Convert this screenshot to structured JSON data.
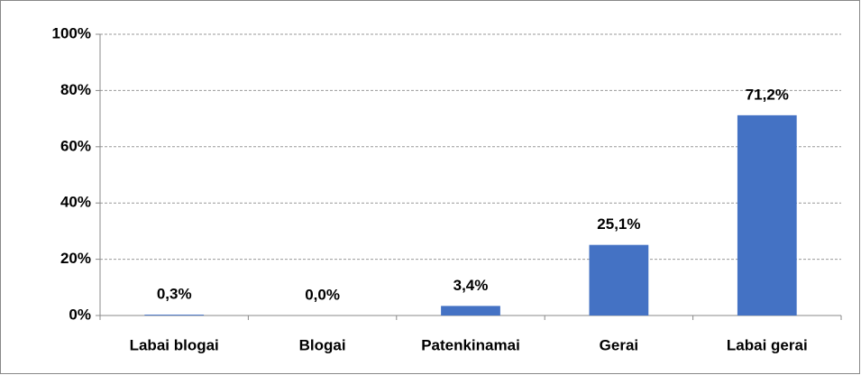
{
  "chart_data": {
    "type": "bar",
    "categories": [
      "Labai blogai",
      "Blogai",
      "Patenkinamai",
      "Gerai",
      "Labai gerai"
    ],
    "values": [
      0.3,
      0.0,
      3.4,
      25.1,
      71.2
    ],
    "value_labels": [
      "0,3%",
      "0,0%",
      "3,4%",
      "25,1%",
      "71,2%"
    ],
    "color": "#4472c4",
    "ylim": [
      0,
      100
    ],
    "yticks": [
      {
        "value": 0,
        "label": "0%"
      },
      {
        "value": 20,
        "label": "20%"
      },
      {
        "value": 40,
        "label": "40%"
      },
      {
        "value": 60,
        "label": "60%"
      },
      {
        "value": 80,
        "label": "80%"
      },
      {
        "value": 100,
        "label": "100%"
      }
    ],
    "grid": true
  }
}
